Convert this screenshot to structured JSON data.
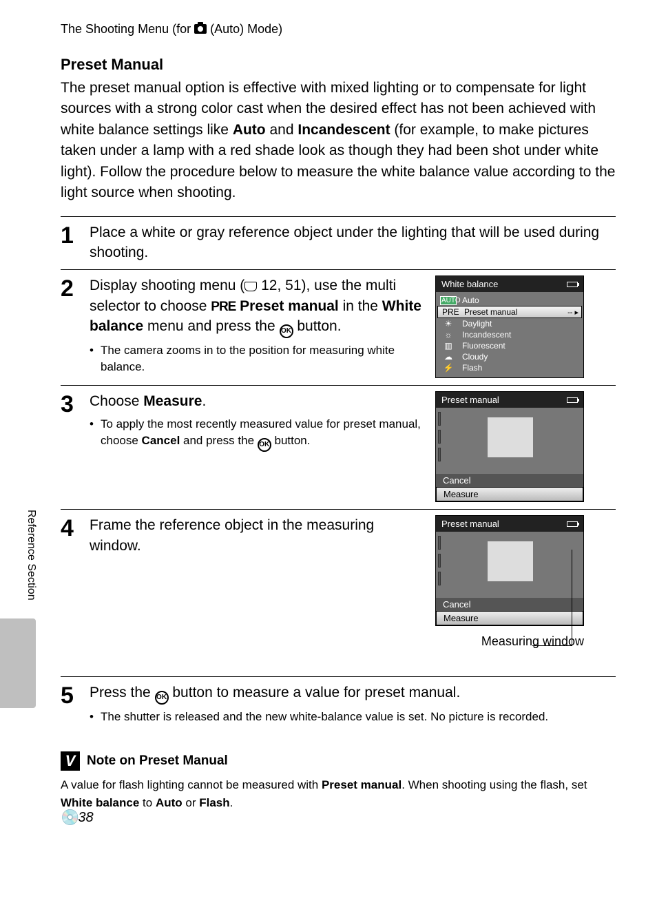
{
  "breadcrumb": {
    "prefix": "The Shooting Menu (for ",
    "suffix": " (Auto) Mode)"
  },
  "section_title": "Preset Manual",
  "intro": {
    "t1": "The preset manual option is effective with mixed lighting or to compensate for light sources with a strong color cast when the desired effect has not been achieved with white balance settings like ",
    "b1": "Auto",
    "t2": " and ",
    "b2": "Incandescent",
    "t3": " (for example, to make pictures taken under a lamp with a red shade look as though they had been shot under white light). Follow the procedure below to measure the white balance value according to the light source when shooting."
  },
  "steps": {
    "s1": {
      "num": "1",
      "text": "Place a white or gray reference object under the lighting that will be used during shooting."
    },
    "s2": {
      "num": "2",
      "t1": "Display shooting menu (",
      "ref": " 12, 51), use the multi selector to choose ",
      "b1": " Preset manual",
      "t2": " in the ",
      "b2": "White balance",
      "t3": " menu and press the ",
      "t4": " button.",
      "bullet": "The camera zooms in to the position for measuring white balance."
    },
    "s3": {
      "num": "3",
      "t1": "Choose ",
      "b1": "Measure",
      "t2": ".",
      "bullet_t1": "To apply the most recently measured value for preset manual, choose ",
      "bullet_b1": "Cancel",
      "bullet_t2": " and press the ",
      "bullet_t3": " button."
    },
    "s4": {
      "num": "4",
      "text": "Frame the reference object in the measuring window."
    },
    "s5": {
      "num": "5",
      "t1": "Press the ",
      "t2": " button to measure a value for preset manual.",
      "bullet": "The shutter is released and the new white-balance value is set. No picture is recorded."
    }
  },
  "lcd_wb": {
    "title": "White balance",
    "items": [
      {
        "icon": "AUTO",
        "label": "Auto",
        "state": "highlighted"
      },
      {
        "icon": "PRE",
        "label": "Preset manual",
        "state": "selected",
        "suffix": "-- ▸"
      },
      {
        "icon": "☀",
        "label": "Daylight"
      },
      {
        "icon": "☼",
        "label": "Incandescent"
      },
      {
        "icon": "▥",
        "label": "Fluorescent"
      },
      {
        "icon": "☁",
        "label": "Cloudy"
      },
      {
        "icon": "⚡",
        "label": "Flash"
      }
    ]
  },
  "lcd_pm": {
    "title": "Preset manual",
    "cancel": "Cancel",
    "measure": "Measure"
  },
  "callout": "Measuring window",
  "note": {
    "title": "Note on Preset Manual",
    "t1": "A value for flash lighting cannot be measured with ",
    "b1": "Preset manual",
    "t2": ". When shooting using the flash, set ",
    "b2": "White balance",
    "t3": " to ",
    "b3": "Auto",
    "t4": " or ",
    "b4": "Flash",
    "t5": "."
  },
  "sidebar_label": "Reference Section",
  "page_number": "38",
  "colors": {
    "lcd_bg": "#777777",
    "lcd_title_bg": "#222222",
    "lcd_btn_bg": "#555555",
    "thumb_tab": "#bfbfbf"
  }
}
